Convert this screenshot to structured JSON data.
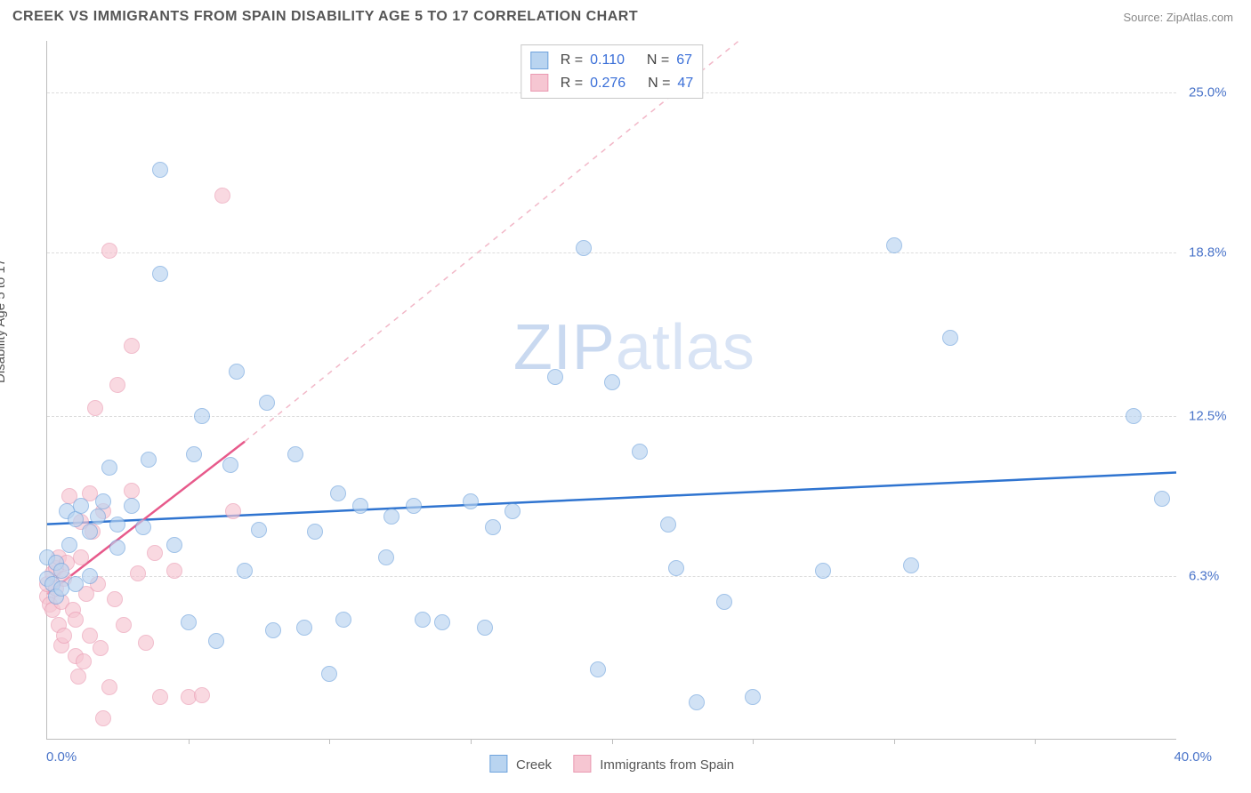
{
  "header": {
    "title": "CREEK VS IMMIGRANTS FROM SPAIN DISABILITY AGE 5 TO 17 CORRELATION CHART",
    "source": "Source: ZipAtlas.com"
  },
  "watermark": {
    "left": "ZIP",
    "right": "atlas"
  },
  "chart": {
    "type": "scatter",
    "y_axis_label": "Disability Age 5 to 17",
    "xlim": [
      0,
      40
    ],
    "ylim": [
      0,
      27
    ],
    "x_label_min": "0.0%",
    "x_label_max": "40.0%",
    "x_ticks": [
      5,
      10,
      15,
      20,
      25,
      30,
      35
    ],
    "y_gridlines": [
      {
        "v": 6.3,
        "label": "6.3%"
      },
      {
        "v": 12.5,
        "label": "12.5%"
      },
      {
        "v": 18.8,
        "label": "18.8%"
      },
      {
        "v": 25.0,
        "label": "25.0%"
      }
    ],
    "background_color": "#ffffff",
    "grid_color": "#dcdcdc",
    "axis_color": "#bdbdbd",
    "label_color": "#4a74c9",
    "title_fontsize": 16,
    "label_fontsize": 15
  },
  "series": {
    "creek": {
      "label": "Creek",
      "fill": "#b9d4f0",
      "stroke": "#6fa3dd",
      "fill_opacity": 0.65,
      "marker_radius": 9,
      "R": "0.110",
      "N": "67",
      "trend": {
        "x1": 0,
        "y1": 8.3,
        "x2": 40,
        "y2": 10.3,
        "color": "#2f74d0",
        "width": 2.5,
        "dash": "none"
      },
      "points": [
        [
          0,
          6.2
        ],
        [
          0,
          7.0
        ],
        [
          0.2,
          6.0
        ],
        [
          0.3,
          5.5
        ],
        [
          0.3,
          6.8
        ],
        [
          0.5,
          6.5
        ],
        [
          0.5,
          5.8
        ],
        [
          0.7,
          8.8
        ],
        [
          0.8,
          7.5
        ],
        [
          1.0,
          8.5
        ],
        [
          1.0,
          6.0
        ],
        [
          1.2,
          9.0
        ],
        [
          1.5,
          8.0
        ],
        [
          1.5,
          6.3
        ],
        [
          1.8,
          8.6
        ],
        [
          2.0,
          9.2
        ],
        [
          2.2,
          10.5
        ],
        [
          2.5,
          8.3
        ],
        [
          2.5,
          7.4
        ],
        [
          3.0,
          9.0
        ],
        [
          3.4,
          8.2
        ],
        [
          3.6,
          10.8
        ],
        [
          4.0,
          18.0
        ],
        [
          4.0,
          22.0
        ],
        [
          4.5,
          7.5
        ],
        [
          5.0,
          4.5
        ],
        [
          5.2,
          11.0
        ],
        [
          5.5,
          12.5
        ],
        [
          6.0,
          3.8
        ],
        [
          6.5,
          10.6
        ],
        [
          6.7,
          14.2
        ],
        [
          7.0,
          6.5
        ],
        [
          7.5,
          8.1
        ],
        [
          7.8,
          13.0
        ],
        [
          8.0,
          4.2
        ],
        [
          8.8,
          11.0
        ],
        [
          9.1,
          4.3
        ],
        [
          9.5,
          8.0
        ],
        [
          10.0,
          2.5
        ],
        [
          10.3,
          9.5
        ],
        [
          10.5,
          4.6
        ],
        [
          11.1,
          9.0
        ],
        [
          12.0,
          7.0
        ],
        [
          12.2,
          8.6
        ],
        [
          13.0,
          9.0
        ],
        [
          13.3,
          4.6
        ],
        [
          14.0,
          4.5
        ],
        [
          15.0,
          9.2
        ],
        [
          15.5,
          4.3
        ],
        [
          15.8,
          8.2
        ],
        [
          16.5,
          8.8
        ],
        [
          18.0,
          14.0
        ],
        [
          19.0,
          19.0
        ],
        [
          19.5,
          2.7
        ],
        [
          20.0,
          13.8
        ],
        [
          21.0,
          11.1
        ],
        [
          22.0,
          8.3
        ],
        [
          22.3,
          6.6
        ],
        [
          23.0,
          1.4
        ],
        [
          24.0,
          5.3
        ],
        [
          25.0,
          1.6
        ],
        [
          27.5,
          6.5
        ],
        [
          30.0,
          19.1
        ],
        [
          30.6,
          6.7
        ],
        [
          32.0,
          15.5
        ],
        [
          38.5,
          12.5
        ],
        [
          39.5,
          9.3
        ]
      ]
    },
    "spain": {
      "label": "Immigrants from Spain",
      "fill": "#f6c6d2",
      "stroke": "#ea9ab2",
      "fill_opacity": 0.65,
      "marker_radius": 9,
      "R": "0.276",
      "N": "47",
      "trend_solid": {
        "x1": 0,
        "y1": 5.6,
        "x2": 7.0,
        "y2": 11.5,
        "color": "#e75a8b",
        "width": 2.5
      },
      "trend_dash": {
        "x1": 7.0,
        "y1": 11.5,
        "x2": 24.5,
        "y2": 27,
        "color": "#f2b8c8",
        "width": 1.5
      },
      "points": [
        [
          0,
          5.5
        ],
        [
          0,
          6.0
        ],
        [
          0.1,
          5.2
        ],
        [
          0.2,
          6.4
        ],
        [
          0.2,
          5.0
        ],
        [
          0.3,
          5.8
        ],
        [
          0.3,
          6.6
        ],
        [
          0.4,
          4.4
        ],
        [
          0.4,
          7.0
        ],
        [
          0.5,
          5.3
        ],
        [
          0.5,
          3.6
        ],
        [
          0.6,
          6.2
        ],
        [
          0.6,
          4.0
        ],
        [
          0.7,
          6.8
        ],
        [
          0.8,
          9.4
        ],
        [
          0.9,
          5.0
        ],
        [
          1.0,
          3.2
        ],
        [
          1.0,
          4.6
        ],
        [
          1.1,
          2.4
        ],
        [
          1.2,
          8.4
        ],
        [
          1.2,
          7.0
        ],
        [
          1.3,
          3.0
        ],
        [
          1.4,
          5.6
        ],
        [
          1.5,
          9.5
        ],
        [
          1.5,
          4.0
        ],
        [
          1.6,
          8.0
        ],
        [
          1.7,
          12.8
        ],
        [
          1.8,
          6.0
        ],
        [
          1.9,
          3.5
        ],
        [
          2.0,
          8.8
        ],
        [
          2.0,
          0.8
        ],
        [
          2.2,
          18.9
        ],
        [
          2.2,
          2.0
        ],
        [
          2.4,
          5.4
        ],
        [
          2.5,
          13.7
        ],
        [
          2.7,
          4.4
        ],
        [
          3.0,
          9.6
        ],
        [
          3.0,
          15.2
        ],
        [
          3.2,
          6.4
        ],
        [
          3.5,
          3.7
        ],
        [
          3.8,
          7.2
        ],
        [
          4.0,
          1.6
        ],
        [
          4.5,
          6.5
        ],
        [
          5.0,
          1.6
        ],
        [
          5.5,
          1.7
        ],
        [
          6.2,
          21.0
        ],
        [
          6.6,
          8.8
        ]
      ]
    }
  },
  "legend": {
    "top_labels": {
      "R": "R  =",
      "N": "N  ="
    }
  }
}
